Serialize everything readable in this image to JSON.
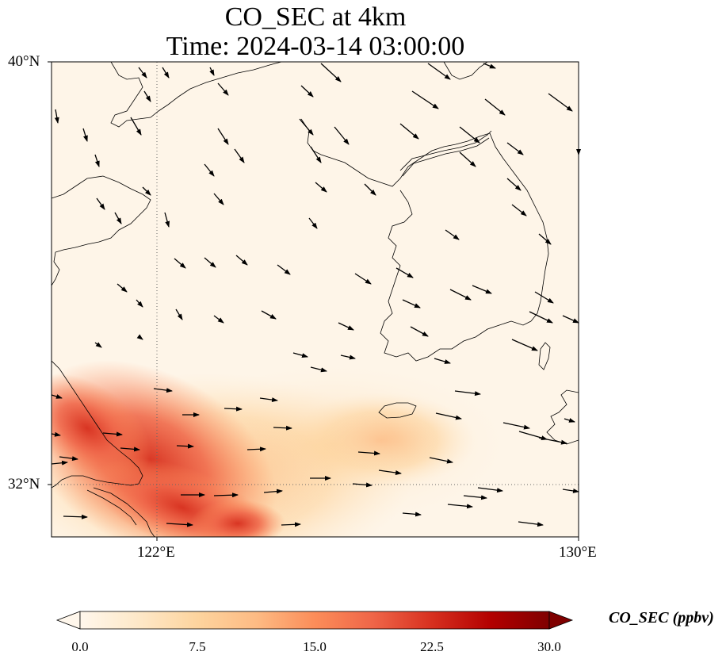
{
  "title": {
    "line1": "CO_SEC at 4km",
    "line2": "Time: 2024-03-14 03:00:00"
  },
  "map": {
    "lon_range": [
      119,
      130
    ],
    "lat_range": [
      31,
      40
    ],
    "lat_ticks": [
      {
        "value": 40,
        "label": "40°N"
      },
      {
        "value": 32,
        "label": "32°N"
      }
    ],
    "lon_ticks": [
      {
        "value": 122,
        "label": "122°E"
      },
      {
        "value": 130,
        "label": "130°E"
      }
    ],
    "gridlines": {
      "lons": [
        122
      ],
      "lats": [
        32
      ],
      "style": "dotted"
    },
    "coastline_color": "#000000",
    "background_color": "#fef5e8",
    "vector_field": "wind arrows"
  },
  "colorbar": {
    "label": "CO_SEC (ppbv)",
    "min": 0.0,
    "max": 30.0,
    "ticks": [
      "0.0",
      "7.5",
      "15.0",
      "22.5",
      "30.0"
    ],
    "extend": "both",
    "colormap": "OrRd",
    "colors": [
      "#fff7ec",
      "#fee8c8",
      "#fdd49e",
      "#fdbb84",
      "#fc8d59",
      "#ef6548",
      "#d7301f",
      "#b30000",
      "#7f0000"
    ]
  }
}
